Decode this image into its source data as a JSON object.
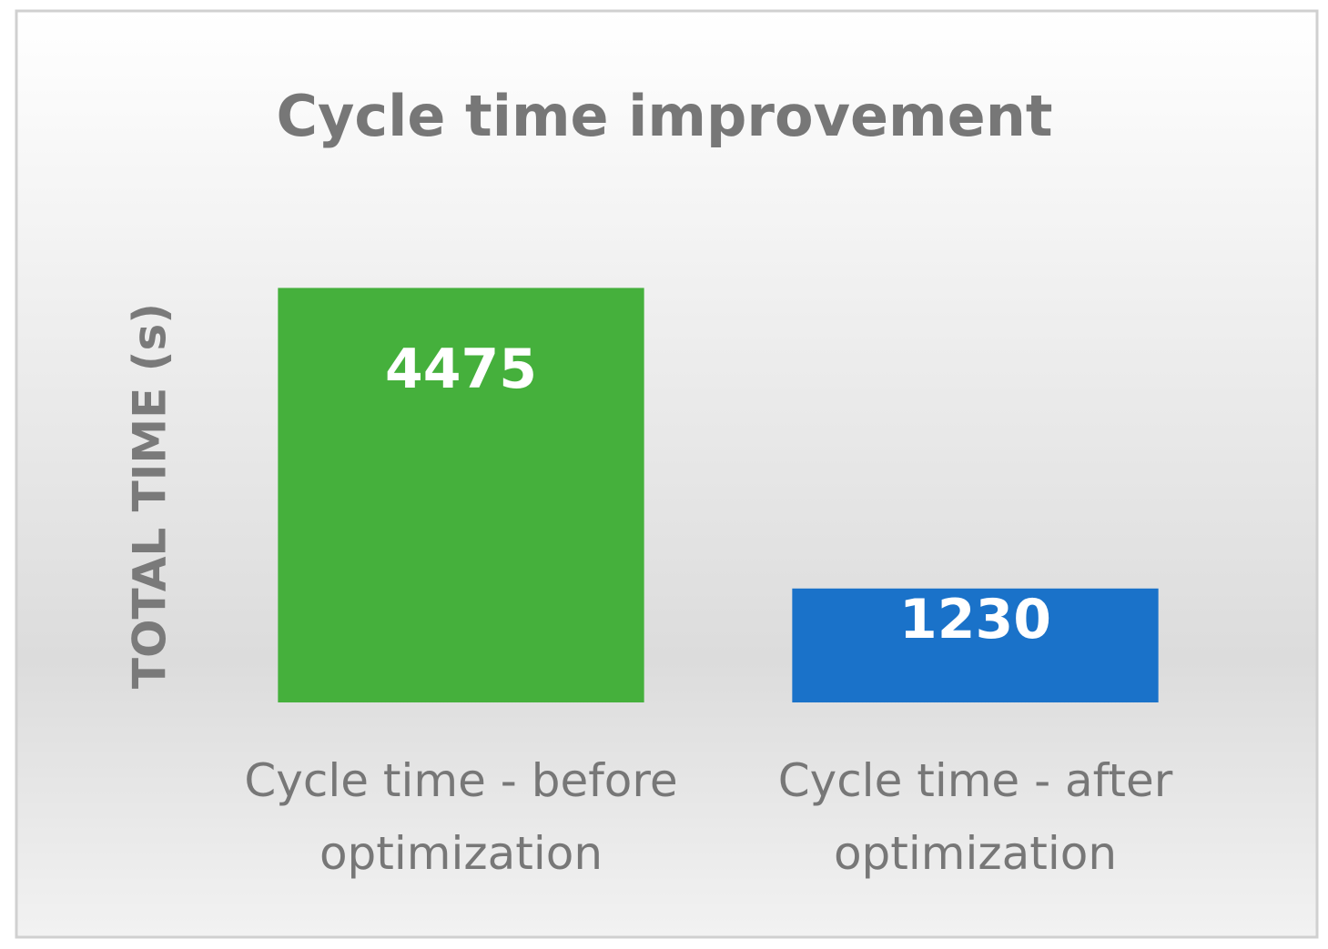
{
  "chart_data": {
    "type": "bar",
    "title": "Cycle time improvement",
    "y_label": "TOTAL TIME (s)",
    "categories": [
      "Cycle time - before optimization",
      "Cycle time - after optimization"
    ],
    "values": [
      4475,
      1230
    ],
    "colors": [
      "#45b03c",
      "#1a72c9"
    ],
    "ylim": [
      0,
      5000
    ]
  }
}
